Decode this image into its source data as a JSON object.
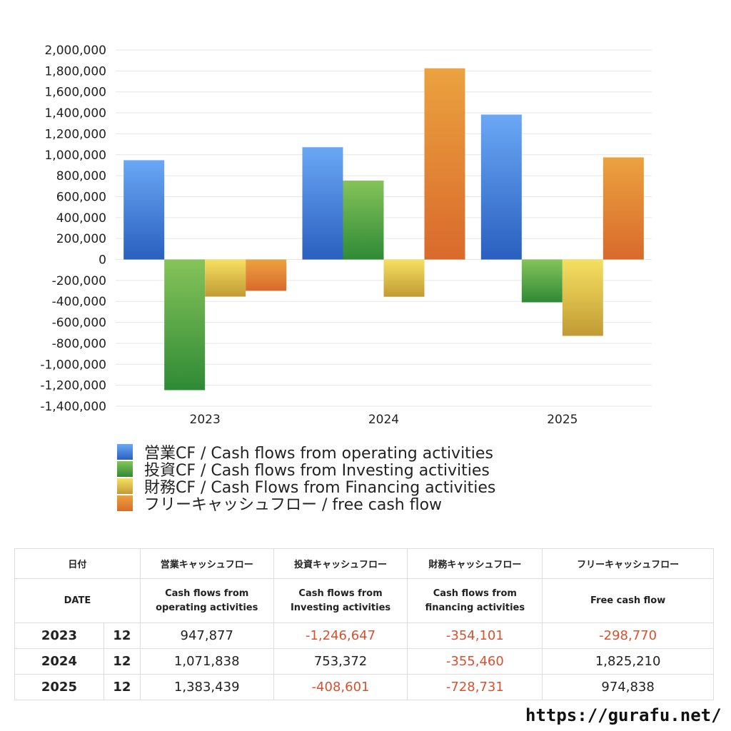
{
  "chart_data": {
    "type": "bar",
    "categories": [
      "2023",
      "2024",
      "2025"
    ],
    "ylim": [
      -1400000,
      2000000
    ],
    "yticks": [
      2000000,
      1800000,
      1600000,
      1400000,
      1200000,
      1000000,
      800000,
      600000,
      400000,
      200000,
      0,
      -200000,
      -400000,
      -600000,
      -800000,
      -1000000,
      -1200000,
      -1400000
    ],
    "ytick_labels": [
      "2,000,000",
      "1,800,000",
      "1,600,000",
      "1,400,000",
      "1,200,000",
      "1,000,000",
      "800,000",
      "600,000",
      "400,000",
      "200,000",
      "0",
      "-200,000",
      "-400,000",
      "-600,000",
      "-800,000",
      "-1,000,000",
      "-1,200,000",
      "-1,400,000"
    ],
    "grid": true,
    "legend_position": "bottom",
    "series": [
      {
        "name": "営業CF / Cash flows from operating activities",
        "values": [
          947877,
          1071838,
          1383439
        ],
        "color_top": "#6aa8f5",
        "color_bottom": "#2a5fbf"
      },
      {
        "name": "投資CF / Cash flows from Investing activities",
        "values": [
          -1246647,
          753372,
          -408601
        ],
        "color_top": "#86c35a",
        "color_bottom": "#2f8a35"
      },
      {
        "name": "財務CF / Cash Flows from Financing activities",
        "values": [
          -354101,
          -355460,
          -728731
        ],
        "color_top": "#f5e060",
        "color_bottom": "#c19b35"
      },
      {
        "name": "フリーキャッシュフロー / free cash flow",
        "values": [
          -298770,
          1825210,
          974838
        ],
        "color_top": "#eba23f",
        "color_bottom": "#d96a2c"
      }
    ]
  },
  "table": {
    "header1": [
      "日付",
      "営業キャッシュフロー",
      "投資キャッシュフロー",
      "財務キャッシュフロー",
      "フリーキャッシュフロー"
    ],
    "header2": {
      "date": "DATE",
      "operating": [
        "Cash flows from",
        "operating activities"
      ],
      "investing": [
        "Cash flows from",
        "Investing activities"
      ],
      "financing": [
        "Cash flows from",
        "financing activities"
      ],
      "free": "Free cash flow"
    },
    "rows": [
      {
        "year": "2023",
        "month": "12",
        "operating": "947,877",
        "investing": "-1,246,647",
        "financing": "-354,101",
        "free": "-298,770"
      },
      {
        "year": "2024",
        "month": "12",
        "operating": "1,071,838",
        "investing": "753,372",
        "financing": "-355,460",
        "free": "1,825,210"
      },
      {
        "year": "2025",
        "month": "12",
        "operating": "1,383,439",
        "investing": "-408,601",
        "financing": "-728,731",
        "free": "974,838"
      }
    ]
  },
  "site_url": "https://gurafu.net/"
}
